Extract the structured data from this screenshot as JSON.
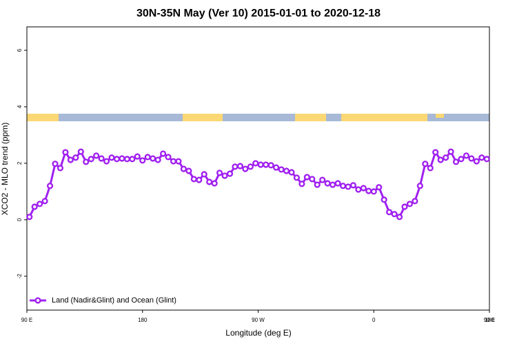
{
  "chart_data": {
    "type": "line",
    "title": "30N-35N May (Ver 10)   2015-01-01 to 2020-12-18",
    "x_label": "Longitude (deg E)",
    "y_label": "XCO2 - MLO trend (ppm)",
    "xlim": [
      90,
      450
    ],
    "xticks": [
      {
        "value": 90,
        "label": "90 E"
      },
      180,
      {
        "value": 270,
        "label": "90 W"
      },
      {
        "value": 360,
        "label": "0"
      },
      {
        "value": 450,
        "label": "90 E"
      },
      {
        "value": 540,
        "label": "180"
      }
    ],
    "ylim": [
      -3.2,
      6.83
    ],
    "yticks": [
      -2,
      0,
      2,
      4,
      6
    ],
    "legend": "bottom-left",
    "x": [
      92,
      96,
      100,
      104,
      108,
      112,
      116,
      120,
      124,
      128,
      132,
      136,
      140,
      144,
      148,
      152,
      156,
      160,
      164,
      168,
      172,
      176,
      180,
      184,
      188,
      192,
      196,
      200,
      204,
      208,
      212,
      216,
      220,
      224,
      228,
      232,
      236,
      240,
      244,
      248,
      252,
      256,
      260,
      264,
      268,
      272,
      276,
      280,
      284,
      288,
      292,
      296,
      300,
      304,
      308,
      312,
      316,
      320,
      324,
      328,
      332,
      336,
      340,
      344,
      348,
      352,
      356,
      360,
      364,
      368,
      372,
      376,
      380,
      384,
      388,
      392,
      396,
      400,
      404,
      408,
      412,
      416,
      420,
      424,
      428,
      432,
      436,
      440,
      444,
      448
    ],
    "series": [
      {
        "name": "Land (Nadir&Glint) and Ocean (Glint)",
        "color": "#a020f0",
        "values": [
          0.1,
          0.46,
          0.56,
          0.66,
          1.2,
          1.98,
          1.83,
          2.39,
          2.12,
          2.2,
          2.41,
          2.05,
          2.15,
          2.27,
          2.17,
          2.07,
          2.2,
          2.15,
          2.17,
          2.15,
          2.15,
          2.24,
          2.1,
          2.22,
          2.17,
          2.12,
          2.34,
          2.22,
          2.07,
          2.07,
          1.8,
          1.73,
          1.44,
          1.41,
          1.61,
          1.34,
          1.29,
          1.66,
          1.56,
          1.63,
          1.88,
          1.9,
          1.8,
          1.88,
          2.0,
          1.95,
          1.95,
          1.93,
          1.85,
          1.78,
          1.73,
          1.68,
          1.49,
          1.27,
          1.51,
          1.44,
          1.24,
          1.41,
          1.29,
          1.24,
          1.29,
          1.2,
          1.17,
          1.22,
          1.07,
          1.12,
          1.02,
          1.0,
          1.15,
          0.71,
          0.27,
          0.2,
          0.1,
          0.46,
          0.56,
          0.66,
          1.2,
          1.98,
          1.83,
          2.39,
          2.12,
          2.2,
          2.41,
          2.05,
          2.15,
          2.27,
          2.17,
          2.07,
          2.2,
          2.15
        ]
      }
    ]
  }
}
